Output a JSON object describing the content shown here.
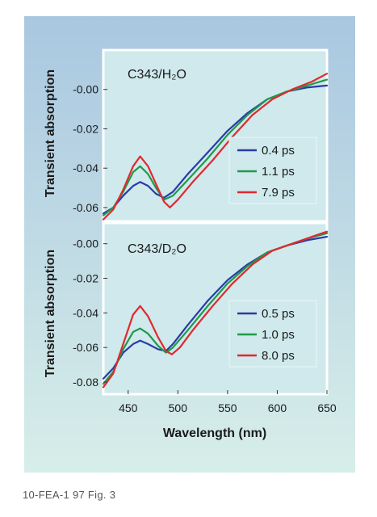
{
  "caption": "10-FEA-1 97 Fig. 3",
  "colors": {
    "blue": "#2a3aa8",
    "green": "#1f9a4a",
    "red": "#e0292e",
    "plot_bg": "#cfe9ec",
    "outer_bg": "#c0dde6"
  },
  "chart_data": [
    {
      "type": "line",
      "title": "C343/H₂O",
      "xlabel": "",
      "ylabel": "Transient absorption",
      "xlim": [
        425,
        650
      ],
      "ylim": [
        -0.067,
        0.02
      ],
      "yticks": [
        -0.06,
        -0.04,
        -0.02,
        0.0
      ],
      "ytick_labels": [
        "-0.06",
        "-0.04",
        "-0.02",
        "-0.00"
      ],
      "legend_position": "right",
      "grid": false,
      "series": [
        {
          "name": "0.4 ps",
          "color": "#2a3aa8",
          "points": [
            [
              425,
              -0.063
            ],
            [
              435,
              -0.06
            ],
            [
              445,
              -0.054
            ],
            [
              455,
              -0.049
            ],
            [
              462,
              -0.047
            ],
            [
              470,
              -0.049
            ],
            [
              478,
              -0.053
            ],
            [
              486,
              -0.055
            ],
            [
              495,
              -0.052
            ],
            [
              510,
              -0.043
            ],
            [
              530,
              -0.032
            ],
            [
              550,
              -0.021
            ],
            [
              570,
              -0.012
            ],
            [
              590,
              -0.005
            ],
            [
              610,
              -0.001
            ],
            [
              630,
              0.001
            ],
            [
              650,
              0.002
            ]
          ]
        },
        {
          "name": "1.1 ps",
          "color": "#1f9a4a",
          "points": [
            [
              425,
              -0.064
            ],
            [
              435,
              -0.06
            ],
            [
              445,
              -0.052
            ],
            [
              455,
              -0.042
            ],
            [
              462,
              -0.039
            ],
            [
              470,
              -0.043
            ],
            [
              478,
              -0.05
            ],
            [
              486,
              -0.056
            ],
            [
              495,
              -0.054
            ],
            [
              510,
              -0.046
            ],
            [
              530,
              -0.035
            ],
            [
              550,
              -0.023
            ],
            [
              570,
              -0.013
            ],
            [
              590,
              -0.005
            ],
            [
              610,
              -0.001
            ],
            [
              630,
              0.002
            ],
            [
              650,
              0.005
            ]
          ]
        },
        {
          "name": "7.9 ps",
          "color": "#e0292e",
          "points": [
            [
              425,
              -0.066
            ],
            [
              435,
              -0.061
            ],
            [
              445,
              -0.051
            ],
            [
              455,
              -0.039
            ],
            [
              462,
              -0.034
            ],
            [
              470,
              -0.039
            ],
            [
              478,
              -0.048
            ],
            [
              486,
              -0.057
            ],
            [
              492,
              -0.06
            ],
            [
              500,
              -0.056
            ],
            [
              515,
              -0.047
            ],
            [
              535,
              -0.036
            ],
            [
              555,
              -0.024
            ],
            [
              575,
              -0.013
            ],
            [
              595,
              -0.005
            ],
            [
              615,
              0.0
            ],
            [
              635,
              0.004
            ],
            [
              650,
              0.008
            ]
          ]
        }
      ]
    },
    {
      "type": "line",
      "title": "C343/D₂O",
      "xlabel": "Wavelength (nm)",
      "ylabel": "Transient absorption",
      "xlim": [
        425,
        650
      ],
      "ylim": [
        -0.087,
        0.012
      ],
      "xticks": [
        450,
        500,
        550,
        600,
        650
      ],
      "xtick_labels": [
        "450",
        "500",
        "550",
        "600",
        "650"
      ],
      "yticks": [
        -0.08,
        -0.06,
        -0.04,
        -0.02,
        0.0
      ],
      "ytick_labels": [
        "-0.08",
        "-0.06",
        "-0.04",
        "-0.02",
        "-0.00"
      ],
      "legend_position": "right",
      "grid": false,
      "series": [
        {
          "name": "0.5 ps",
          "color": "#2a3aa8",
          "points": [
            [
              425,
              -0.078
            ],
            [
              435,
              -0.072
            ],
            [
              445,
              -0.063
            ],
            [
              455,
              -0.058
            ],
            [
              462,
              -0.056
            ],
            [
              470,
              -0.058
            ],
            [
              480,
              -0.061
            ],
            [
              488,
              -0.062
            ],
            [
              495,
              -0.058
            ],
            [
              510,
              -0.047
            ],
            [
              530,
              -0.033
            ],
            [
              550,
              -0.021
            ],
            [
              570,
              -0.012
            ],
            [
              590,
              -0.005
            ],
            [
              610,
              -0.001
            ],
            [
              630,
              0.002
            ],
            [
              650,
              0.004
            ]
          ]
        },
        {
          "name": "1.0 ps",
          "color": "#1f9a4a",
          "points": [
            [
              425,
              -0.081
            ],
            [
              435,
              -0.074
            ],
            [
              445,
              -0.061
            ],
            [
              455,
              -0.051
            ],
            [
              462,
              -0.049
            ],
            [
              470,
              -0.052
            ],
            [
              480,
              -0.059
            ],
            [
              488,
              -0.063
            ],
            [
              495,
              -0.06
            ],
            [
              510,
              -0.05
            ],
            [
              530,
              -0.036
            ],
            [
              550,
              -0.023
            ],
            [
              570,
              -0.013
            ],
            [
              590,
              -0.005
            ],
            [
              610,
              -0.001
            ],
            [
              630,
              0.003
            ],
            [
              650,
              0.006
            ]
          ]
        },
        {
          "name": "8.0 ps",
          "color": "#e0292e",
          "points": [
            [
              425,
              -0.083
            ],
            [
              435,
              -0.075
            ],
            [
              445,
              -0.058
            ],
            [
              455,
              -0.041
            ],
            [
              462,
              -0.036
            ],
            [
              470,
              -0.042
            ],
            [
              480,
              -0.054
            ],
            [
              488,
              -0.062
            ],
            [
              494,
              -0.064
            ],
            [
              502,
              -0.06
            ],
            [
              515,
              -0.05
            ],
            [
              535,
              -0.036
            ],
            [
              555,
              -0.023
            ],
            [
              575,
              -0.012
            ],
            [
              595,
              -0.004
            ],
            [
              615,
              0.0
            ],
            [
              635,
              0.004
            ],
            [
              650,
              0.007
            ]
          ]
        }
      ]
    }
  ]
}
